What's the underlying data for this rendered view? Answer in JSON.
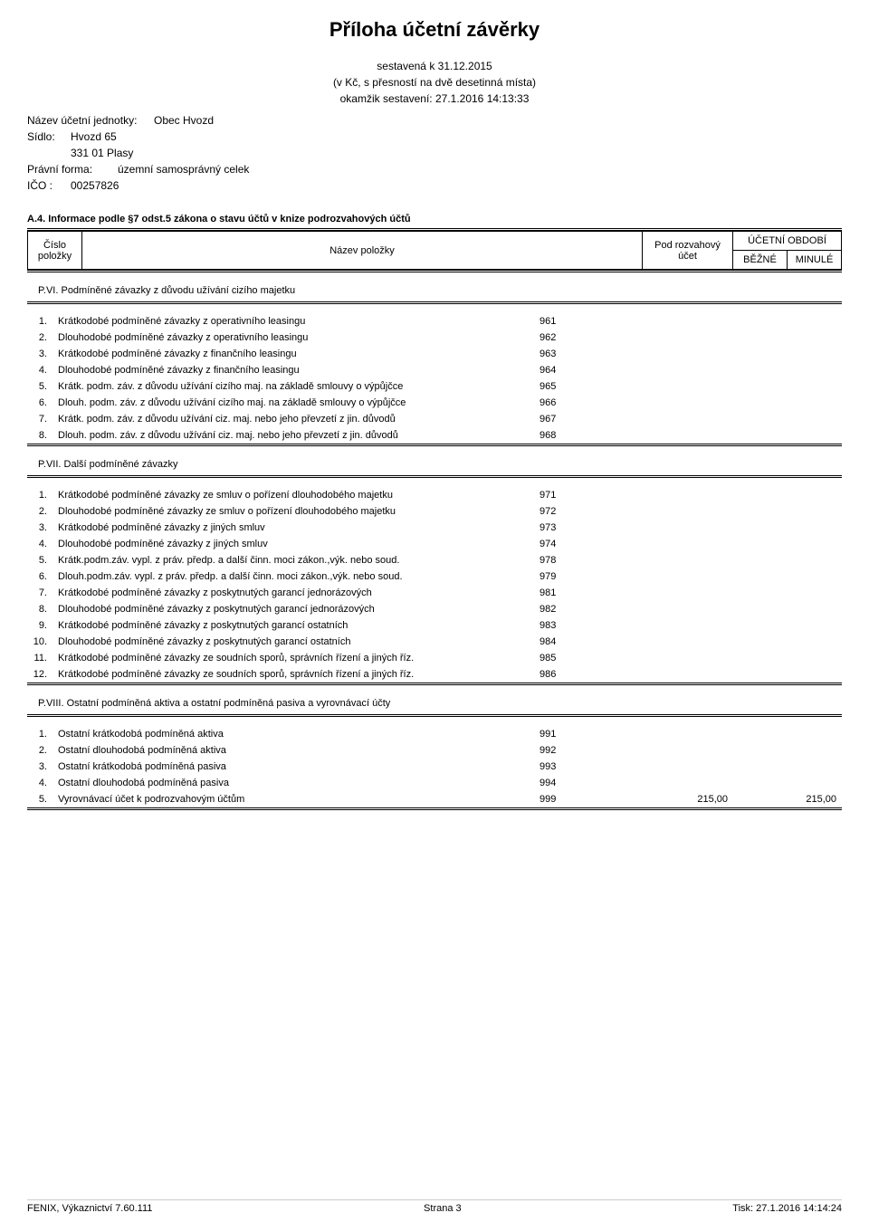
{
  "document": {
    "title": "Příloha účetní závěrky",
    "meta_line1": "sestavená k 31.12.2015",
    "meta_line2": "(v Kč, s přesností na dvě desetinná místa)",
    "meta_line3": "okamžik sestavení: 27.1.2016 14:13:33"
  },
  "entity": {
    "nazev_label": "Název účetní jednotky:",
    "nazev_value": "Obec Hvozd",
    "sidlo_label": "Sídlo:",
    "sidlo_line1": "Hvozd 65",
    "sidlo_line2": "331 01 Plasy",
    "forma_label": "Právní forma:",
    "forma_value": "územní samosprávný celek",
    "ico_label": "IČO  :",
    "ico_value": "00257826"
  },
  "section_caption": "A.4.  Informace podle §7 odst.5 zákona o stavu účtů v knize podrozvahových účtů",
  "header": {
    "cislo1": "Číslo",
    "cislo2": "položky",
    "nazev": "Název položky",
    "pod": "Pod rozvahový účet",
    "obdobi": "ÚČETNÍ OBDOBÍ",
    "bezne": "BĚŽNÉ",
    "minule": "MINULÉ"
  },
  "groups": [
    {
      "title": "P.VI.  Podmíněné závazky z důvodu užívání cizího majetku",
      "rows": [
        {
          "n": "1.",
          "label": "Krátkodobé podmíněné závazky z operativního leasingu",
          "acct": "961",
          "bezne": "",
          "minule": ""
        },
        {
          "n": "2.",
          "label": "Dlouhodobé podmíněné závazky z operativního leasingu",
          "acct": "962",
          "bezne": "",
          "minule": ""
        },
        {
          "n": "3.",
          "label": "Krátkodobé podmíněné závazky z finančního leasingu",
          "acct": "963",
          "bezne": "",
          "minule": ""
        },
        {
          "n": "4.",
          "label": "Dlouhodobé podmíněné závazky z finančního leasingu",
          "acct": "964",
          "bezne": "",
          "minule": ""
        },
        {
          "n": "5.",
          "label": "Krátk. podm. záv. z důvodu užívání cizího maj. na základě smlouvy o výpůjčce",
          "acct": "965",
          "bezne": "",
          "minule": ""
        },
        {
          "n": "6.",
          "label": "Dlouh. podm. záv. z důvodu užívání cizího maj. na základě smlouvy o výpůjčce",
          "acct": "966",
          "bezne": "",
          "minule": ""
        },
        {
          "n": "7.",
          "label": "Krátk. podm. záv. z důvodu užívání ciz. maj. nebo jeho převzetí z jin. důvodů",
          "acct": "967",
          "bezne": "",
          "minule": ""
        },
        {
          "n": "8.",
          "label": "Dlouh. podm. záv. z důvodu užívání ciz. maj. nebo jeho převzetí z jin. důvodů",
          "acct": "968",
          "bezne": "",
          "minule": ""
        }
      ]
    },
    {
      "title": "P.VII. Další podmíněné závazky",
      "rows": [
        {
          "n": "1.",
          "label": "Krátkodobé podmíněné závazky ze smluv o pořízení dlouhodobého majetku",
          "acct": "971",
          "bezne": "",
          "minule": ""
        },
        {
          "n": "2.",
          "label": "Dlouhodobé podmíněné závazky ze smluv o pořízení dlouhodobého majetku",
          "acct": "972",
          "bezne": "",
          "minule": ""
        },
        {
          "n": "3.",
          "label": "Krátkodobé podmíněné závazky z jiných smluv",
          "acct": "973",
          "bezne": "",
          "minule": ""
        },
        {
          "n": "4.",
          "label": "Dlouhodobé podmíněné závazky z jiných smluv",
          "acct": "974",
          "bezne": "",
          "minule": ""
        },
        {
          "n": "5.",
          "label": "Krátk.podm.záv. vypl. z práv. předp. a další činn. moci zákon.,výk. nebo soud.",
          "acct": "978",
          "bezne": "",
          "minule": ""
        },
        {
          "n": "6.",
          "label": "Dlouh.podm.záv. vypl. z práv. předp. a další činn. moci zákon.,výk. nebo soud.",
          "acct": "979",
          "bezne": "",
          "minule": ""
        },
        {
          "n": "7.",
          "label": "Krátkodobé podmíněné závazky z poskytnutých garancí jednorázových",
          "acct": "981",
          "bezne": "",
          "minule": ""
        },
        {
          "n": "8.",
          "label": "Dlouhodobé podmíněné závazky z poskytnutých garancí jednorázových",
          "acct": "982",
          "bezne": "",
          "minule": ""
        },
        {
          "n": "9.",
          "label": "Krátkodobé podmíněné závazky z poskytnutých garancí ostatních",
          "acct": "983",
          "bezne": "",
          "minule": ""
        },
        {
          "n": "10.",
          "label": "Dlouhodobé podmíněné závazky z poskytnutých garancí ostatních",
          "acct": "984",
          "bezne": "",
          "minule": ""
        },
        {
          "n": "11.",
          "label": "Krátkodobé podmíněné závazky ze soudních sporů, správních řízení a jiných říz.",
          "acct": "985",
          "bezne": "",
          "minule": ""
        },
        {
          "n": "12.",
          "label": "Krátkodobé podmíněné závazky ze soudních sporů, správních řízení a jiných říz.",
          "acct": "986",
          "bezne": "",
          "minule": ""
        }
      ]
    },
    {
      "title": "P.VIII. Ostatní podmíněná aktiva a ostatní podmíněná pasiva a vyrovnávací účty",
      "rows": [
        {
          "n": "1.",
          "label": "Ostatní krátkodobá podmíněná aktiva",
          "acct": "991",
          "bezne": "",
          "minule": ""
        },
        {
          "n": "2.",
          "label": "Ostatní dlouhodobá podmíněná aktiva",
          "acct": "992",
          "bezne": "",
          "minule": ""
        },
        {
          "n": "3.",
          "label": "Ostatní krátkodobá podmíněná pasiva",
          "acct": "993",
          "bezne": "",
          "minule": ""
        },
        {
          "n": "4.",
          "label": "Ostatní dlouhodobá podmíněná pasiva",
          "acct": "994",
          "bezne": "",
          "minule": ""
        },
        {
          "n": "5.",
          "label": "Vyrovnávací účet k podrozvahovým účtům",
          "acct": "999",
          "bezne": "215,00",
          "minule": "215,00"
        }
      ]
    }
  ],
  "footer": {
    "left": "FENIX, Výkaznictví 7.60.111",
    "center": "Strana 3",
    "right": "Tisk: 27.1.2016 14:14:24"
  }
}
